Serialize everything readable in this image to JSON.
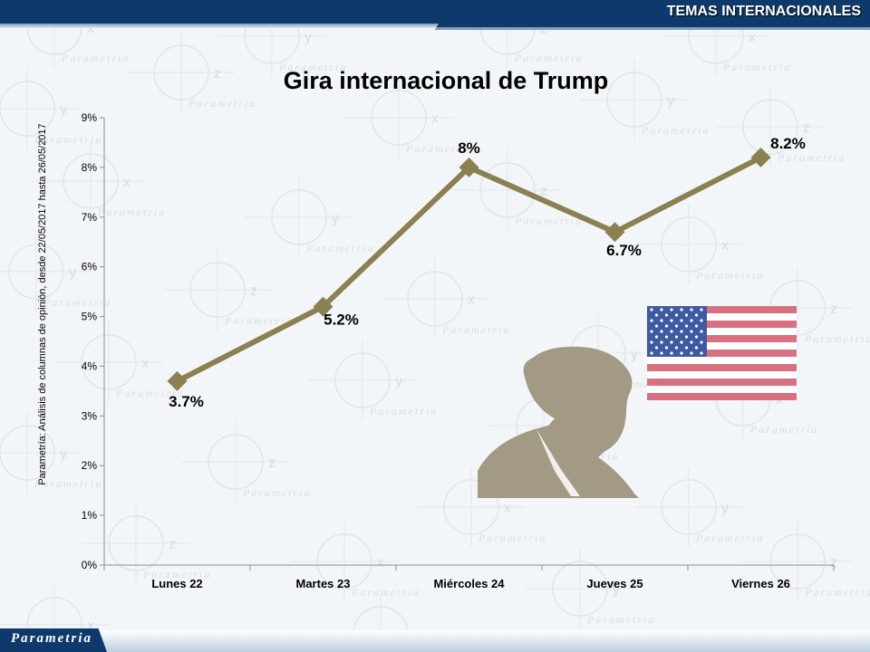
{
  "header": {
    "section_title": "TEMAS INTERNACIONALES"
  },
  "footer": {
    "brand": "Parametria"
  },
  "source_note": "Parametría: Análisis de columnas de opinión, desde 22/05/2017 hasta 26/05/2017",
  "background_watermark_text": "Parametria",
  "colors": {
    "navy": "#0e3a6b",
    "line": "#8a8050",
    "silhouette": "#a39a86",
    "flag_red": "#d9707f",
    "flag_blue": "#3e5aa0"
  },
  "chart_data": {
    "type": "line",
    "title": "Gira internacional de Trump",
    "categories": [
      "Lunes 22",
      "Martes 23",
      "Miércoles 24",
      "Jueves 25",
      "Viernes 26"
    ],
    "values": [
      3.7,
      5.2,
      8.0,
      6.7,
      8.2
    ],
    "data_labels": [
      "3.7%",
      "5.2%",
      "8%",
      "6.7%",
      "8.2%"
    ],
    "ylim": [
      0,
      9
    ],
    "y_ticks": [
      "0%",
      "1%",
      "2%",
      "3%",
      "4%",
      "5%",
      "6%",
      "7%",
      "8%",
      "9%"
    ],
    "grid": false,
    "legend": "none"
  }
}
